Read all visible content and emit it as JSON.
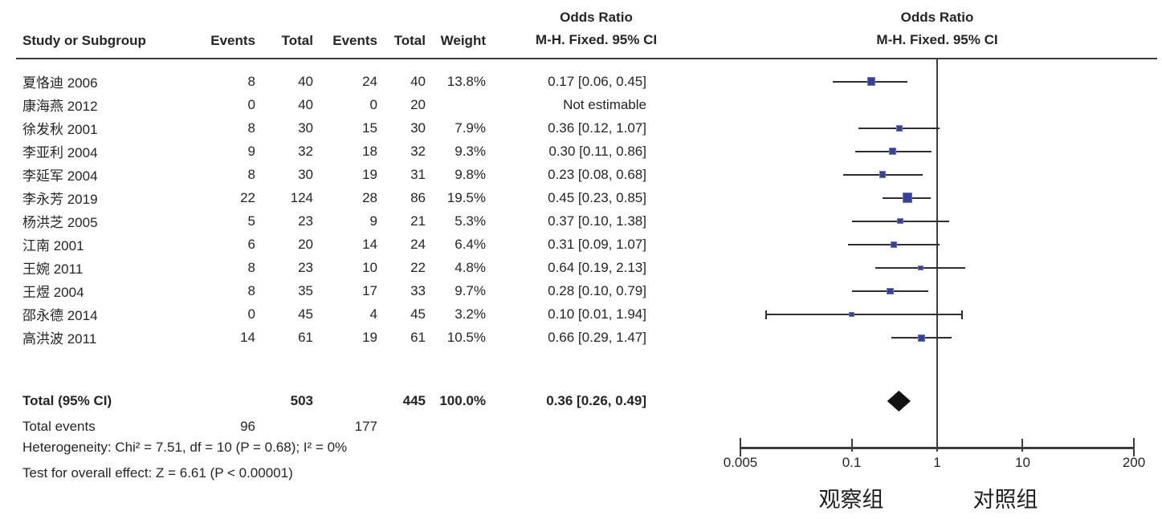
{
  "table": {
    "headers": {
      "study": "Study or Subgroup",
      "events1": "Events",
      "total1": "Total",
      "events2": "Events",
      "total2": "Total",
      "weight": "Weight",
      "or_line1": "Odds Ratio",
      "or_line2": "M-H. Fixed. 95% CI",
      "plot_line1": "Odds Ratio",
      "plot_line2": "M-H. Fixed. 95% CI"
    },
    "rows": [
      {
        "study": "夏恪迪 2006",
        "events1": "8",
        "total1": "40",
        "events2": "24",
        "total2": "40",
        "weight": "13.8%",
        "or_ci": "0.17 [0.06, 0.45]"
      },
      {
        "study": "康海燕 2012",
        "events1": "0",
        "total1": "40",
        "events2": "0",
        "total2": "20",
        "weight": "",
        "or_ci": "Not estimable"
      },
      {
        "study": "徐发秋 2001",
        "events1": "8",
        "total1": "30",
        "events2": "15",
        "total2": "30",
        "weight": "7.9%",
        "or_ci": "0.36 [0.12, 1.07]"
      },
      {
        "study": "李亚利 2004",
        "events1": "9",
        "total1": "32",
        "events2": "18",
        "total2": "32",
        "weight": "9.3%",
        "or_ci": "0.30 [0.11, 0.86]"
      },
      {
        "study": "李延军 2004",
        "events1": "8",
        "total1": "30",
        "events2": "19",
        "total2": "31",
        "weight": "9.8%",
        "or_ci": "0.23 [0.08, 0.68]"
      },
      {
        "study": "李永芳 2019",
        "events1": "22",
        "total1": "124",
        "events2": "28",
        "total2": "86",
        "weight": "19.5%",
        "or_ci": "0.45 [0.23, 0.85]"
      },
      {
        "study": "杨洪芝 2005",
        "events1": "5",
        "total1": "23",
        "events2": "9",
        "total2": "21",
        "weight": "5.3%",
        "or_ci": "0.37 [0.10, 1.38]"
      },
      {
        "study": "江南 2001",
        "events1": "6",
        "total1": "20",
        "events2": "14",
        "total2": "24",
        "weight": "6.4%",
        "or_ci": "0.31 [0.09, 1.07]"
      },
      {
        "study": "王婉 2011",
        "events1": "8",
        "total1": "23",
        "events2": "10",
        "total2": "22",
        "weight": "4.8%",
        "or_ci": "0.64 [0.19, 2.13]"
      },
      {
        "study": "王煜 2004",
        "events1": "8",
        "total1": "35",
        "events2": "17",
        "total2": "33",
        "weight": "9.7%",
        "or_ci": "0.28 [0.10, 0.79]"
      },
      {
        "study": "邵永德 2014",
        "events1": "0",
        "total1": "45",
        "events2": "4",
        "total2": "45",
        "weight": "3.2%",
        "or_ci": "0.10 [0.01, 1.94]"
      },
      {
        "study": "高洪波 2011",
        "events1": "14",
        "total1": "61",
        "events2": "19",
        "total2": "61",
        "weight": "10.5%",
        "or_ci": "0.66 [0.29, 1.47]"
      }
    ],
    "total_row": {
      "label": "Total (95% CI)",
      "total1": "503",
      "total2": "445",
      "weight": "100.0%",
      "or_ci": "0.36 [0.26, 0.49]"
    },
    "total_events": {
      "label": "Total events",
      "events1": "96",
      "events2": "177"
    },
    "heterogeneity": "Heterogeneity: Chi² = 7.51, df = 10 (P = 0.68); I² = 0%",
    "overall_effect": "Test for overall effect: Z = 6.61 (P < 0.00001)"
  },
  "chart_data": {
    "type": "forest",
    "x_scale": "log",
    "x_min": 0.005,
    "x_max": 200,
    "x_tick_values": [
      0.005,
      0.1,
      1,
      10,
      200
    ],
    "x_tick_labels": [
      "0.005",
      "0.1",
      "1",
      "10",
      "200"
    ],
    "null_line": 1,
    "effect_measure": "Odds Ratio, M-H Fixed, 95% CI",
    "series": [
      {
        "name": "夏恪迪 2006",
        "or": 0.17,
        "lo": 0.06,
        "hi": 0.45,
        "weight_pct": 13.8,
        "estimable": true,
        "caps": false
      },
      {
        "name": "康海燕 2012",
        "or": null,
        "lo": null,
        "hi": null,
        "weight_pct": null,
        "estimable": false,
        "caps": false
      },
      {
        "name": "徐发秋 2001",
        "or": 0.36,
        "lo": 0.12,
        "hi": 1.07,
        "weight_pct": 7.9,
        "estimable": true,
        "caps": false
      },
      {
        "name": "李亚利 2004",
        "or": 0.3,
        "lo": 0.11,
        "hi": 0.86,
        "weight_pct": 9.3,
        "estimable": true,
        "caps": false
      },
      {
        "name": "李延军 2004",
        "or": 0.23,
        "lo": 0.08,
        "hi": 0.68,
        "weight_pct": 9.8,
        "estimable": true,
        "caps": false
      },
      {
        "name": "李永芳 2019",
        "or": 0.45,
        "lo": 0.23,
        "hi": 0.85,
        "weight_pct": 19.5,
        "estimable": true,
        "caps": false
      },
      {
        "name": "杨洪芝 2005",
        "or": 0.37,
        "lo": 0.1,
        "hi": 1.38,
        "weight_pct": 5.3,
        "estimable": true,
        "caps": false
      },
      {
        "name": "江南 2001",
        "or": 0.31,
        "lo": 0.09,
        "hi": 1.07,
        "weight_pct": 6.4,
        "estimable": true,
        "caps": false
      },
      {
        "name": "王婉 2011",
        "or": 0.64,
        "lo": 0.19,
        "hi": 2.13,
        "weight_pct": 4.8,
        "estimable": true,
        "caps": false
      },
      {
        "name": "王煜 2004",
        "or": 0.28,
        "lo": 0.1,
        "hi": 0.79,
        "weight_pct": 9.7,
        "estimable": true,
        "caps": false
      },
      {
        "name": "邵永德 2014",
        "or": 0.1,
        "lo": 0.01,
        "hi": 1.94,
        "weight_pct": 3.2,
        "estimable": true,
        "caps": true
      },
      {
        "name": "高洪波 2011",
        "or": 0.66,
        "lo": 0.29,
        "hi": 1.47,
        "weight_pct": 10.5,
        "estimable": true,
        "caps": false
      }
    ],
    "total": {
      "name": "Total (95% CI)",
      "or": 0.36,
      "lo": 0.26,
      "hi": 0.49
    },
    "axis_group_labels": {
      "left": "观察组",
      "right": "对照组"
    },
    "colors": {
      "square_fill": "#33409c",
      "square_border": "#6a76bf",
      "ci_line": "#2f2f2f",
      "diamond": "#111111",
      "axis": "#3c3c3c"
    }
  }
}
